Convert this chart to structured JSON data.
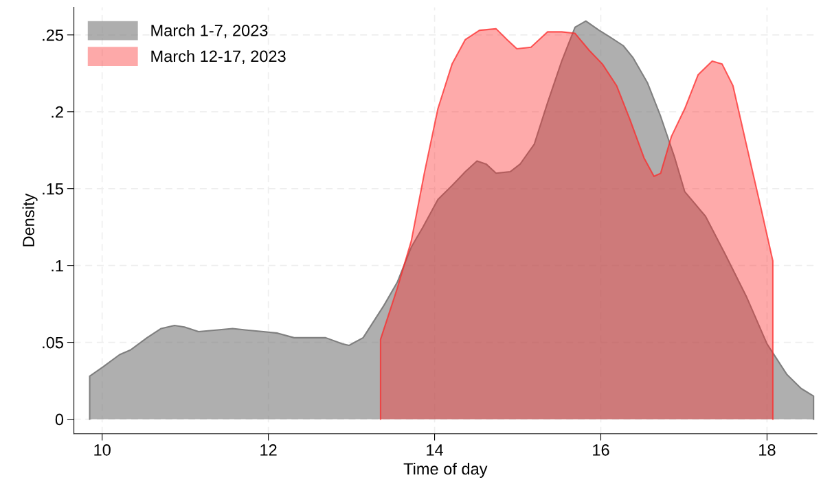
{
  "chart_data": {
    "type": "area",
    "xlabel": "Time of day",
    "ylabel": "Density",
    "xlim": [
      9.66,
      18.6
    ],
    "ylim": [
      -0.0095,
      0.268
    ],
    "xticks": [
      10,
      12,
      14,
      16,
      18
    ],
    "yticks": [
      {
        "value": 0,
        "label": "0"
      },
      {
        "value": 0.05,
        "label": ".05"
      },
      {
        "value": 0.1,
        "label": ".1"
      },
      {
        "value": 0.15,
        "label": ".15"
      },
      {
        "value": 0.2,
        "label": ".2"
      },
      {
        "value": 0.25,
        "label": ".25"
      }
    ],
    "grid": true,
    "legend": "top left",
    "series": [
      {
        "name": "March 1-7, 2023",
        "color": "#7a7a7a",
        "x": [
          9.85,
          10.01,
          10.21,
          10.34,
          10.54,
          10.71,
          10.87,
          10.99,
          11.16,
          11.37,
          11.57,
          11.74,
          11.94,
          12.11,
          12.31,
          12.52,
          12.69,
          12.89,
          12.97,
          13.14,
          13.39,
          13.55,
          13.72,
          13.86,
          14.04,
          14.21,
          14.37,
          14.51,
          14.62,
          14.74,
          14.91,
          15.03,
          15.2,
          15.36,
          15.53,
          15.69,
          15.82,
          15.98,
          16.1,
          16.27,
          16.39,
          16.56,
          16.72,
          16.89,
          17.01,
          17.26,
          17.5,
          17.75,
          18.0,
          18.24,
          18.41,
          18.56
        ],
        "values": [
          0.028,
          0.034,
          0.042,
          0.045,
          0.053,
          0.059,
          0.061,
          0.06,
          0.057,
          0.058,
          0.059,
          0.058,
          0.057,
          0.056,
          0.053,
          0.053,
          0.053,
          0.049,
          0.048,
          0.053,
          0.074,
          0.089,
          0.112,
          0.125,
          0.143,
          0.152,
          0.161,
          0.168,
          0.166,
          0.16,
          0.161,
          0.166,
          0.179,
          0.206,
          0.233,
          0.255,
          0.259,
          0.253,
          0.249,
          0.243,
          0.235,
          0.219,
          0.197,
          0.17,
          0.148,
          0.132,
          0.107,
          0.08,
          0.049,
          0.029,
          0.02,
          0.015
        ]
      },
      {
        "name": "March 12-17, 2023",
        "color": "#fc2a2a",
        "x": [
          13.35,
          13.55,
          13.72,
          13.88,
          14.04,
          14.21,
          14.37,
          14.54,
          14.74,
          14.87,
          14.99,
          15.16,
          15.36,
          15.53,
          15.69,
          15.86,
          16.02,
          16.19,
          16.35,
          16.52,
          16.64,
          16.72,
          16.85,
          17.01,
          17.17,
          17.34,
          17.46,
          17.59,
          17.75,
          17.92,
          18.07
        ],
        "values": [
          0.052,
          0.085,
          0.116,
          0.161,
          0.202,
          0.231,
          0.247,
          0.253,
          0.254,
          0.247,
          0.241,
          0.242,
          0.252,
          0.252,
          0.251,
          0.24,
          0.231,
          0.217,
          0.195,
          0.17,
          0.158,
          0.16,
          0.184,
          0.202,
          0.224,
          0.233,
          0.231,
          0.217,
          0.179,
          0.139,
          0.103
        ]
      }
    ]
  }
}
